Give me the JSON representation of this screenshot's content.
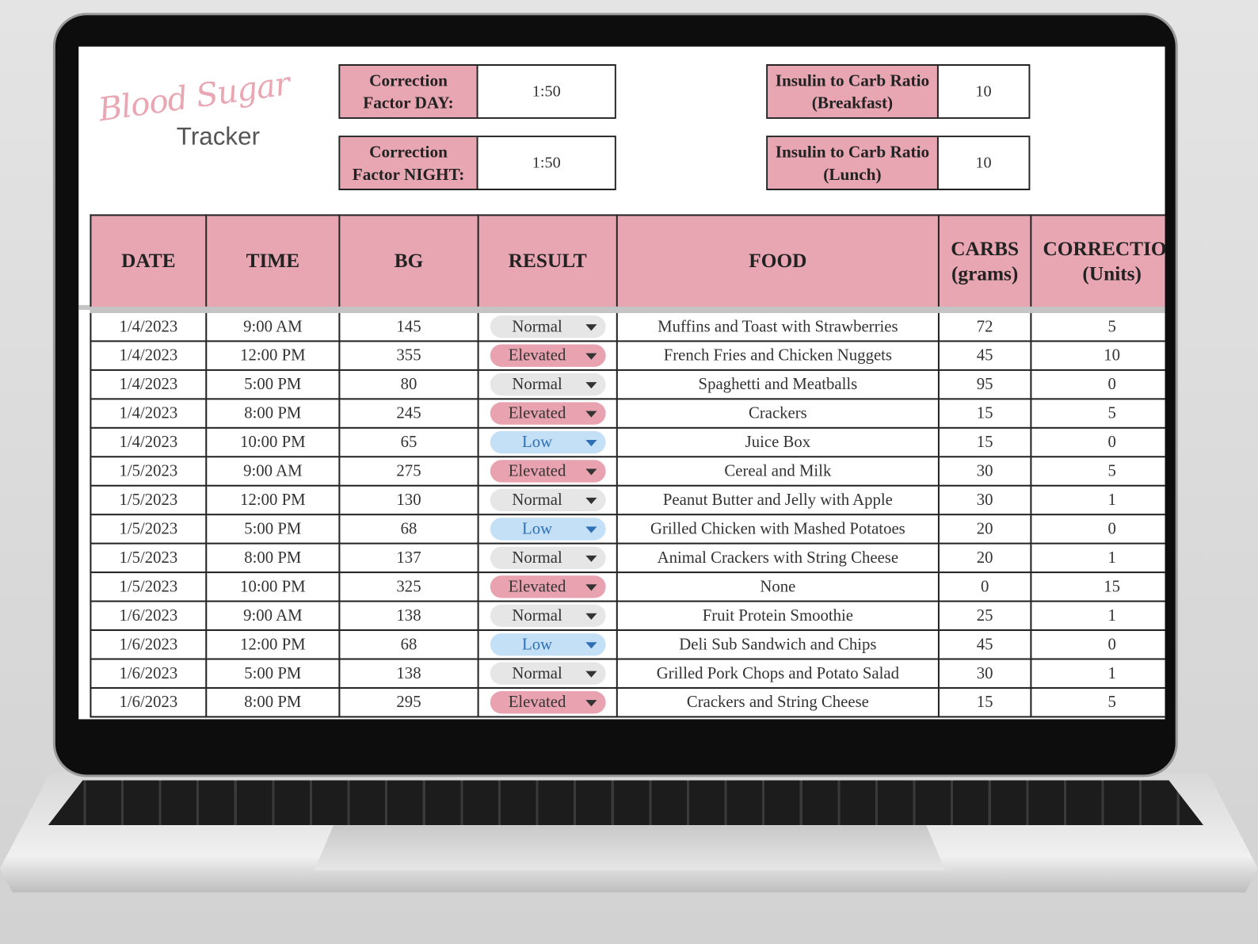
{
  "logo": {
    "script": "Blood Sugar",
    "word": "Tracker"
  },
  "settings": [
    {
      "label": "Correction Factor DAY:",
      "value": "1:50"
    },
    {
      "label": "Correction Factor NIGHT:",
      "value": "1:50"
    },
    {
      "label": "Insulin to Carb Ratio (Breakfast)",
      "value": 10
    },
    {
      "label": "Insulin to Carb Ratio (Lunch)",
      "value": 10
    }
  ],
  "table": {
    "columns": [
      "DATE",
      "TIME",
      "BG",
      "RESULT",
      "FOOD",
      "CARBS (grams)",
      "CORRECTION (Units)"
    ],
    "result_colors": {
      "Normal": {
        "background": "#e6e6e6",
        "text": "#333333"
      },
      "Elevated": {
        "background": "#e9a3b0",
        "text": "#333333"
      },
      "Low": {
        "background": "#c4e0f6",
        "text": "#2f6fb3"
      }
    },
    "rows": [
      [
        "1/4/2023",
        "9:00 AM",
        145,
        "Normal",
        "Muffins and Toast with Strawberries",
        72,
        5
      ],
      [
        "1/4/2023",
        "12:00 PM",
        355,
        "Elevated",
        "French Fries and Chicken Nuggets",
        45,
        10
      ],
      [
        "1/4/2023",
        "5:00 PM",
        80,
        "Normal",
        "Spaghetti and Meatballs",
        95,
        0
      ],
      [
        "1/4/2023",
        "8:00 PM",
        245,
        "Elevated",
        "Crackers",
        15,
        5
      ],
      [
        "1/4/2023",
        "10:00 PM",
        65,
        "Low",
        "Juice Box",
        15,
        0
      ],
      [
        "1/5/2023",
        "9:00 AM",
        275,
        "Elevated",
        "Cereal and Milk",
        30,
        5
      ],
      [
        "1/5/2023",
        "12:00 PM",
        130,
        "Normal",
        "Peanut Butter and Jelly with Apple",
        30,
        1
      ],
      [
        "1/5/2023",
        "5:00 PM",
        68,
        "Low",
        "Grilled Chicken with Mashed Potatoes",
        20,
        0
      ],
      [
        "1/5/2023",
        "8:00 PM",
        137,
        "Normal",
        "Animal Crackers with String Cheese",
        20,
        1
      ],
      [
        "1/5/2023",
        "10:00 PM",
        325,
        "Elevated",
        "None",
        0,
        15
      ],
      [
        "1/6/2023",
        "9:00 AM",
        138,
        "Normal",
        "Fruit Protein Smoothie",
        25,
        1
      ],
      [
        "1/6/2023",
        "12:00 PM",
        68,
        "Low",
        "Deli Sub Sandwich and Chips",
        45,
        0
      ],
      [
        "1/6/2023",
        "5:00 PM",
        138,
        "Normal",
        "Grilled Pork Chops and Potato Salad",
        30,
        1
      ],
      [
        "1/6/2023",
        "8:00 PM",
        295,
        "Elevated",
        "Crackers and String Cheese",
        15,
        5
      ]
    ]
  }
}
